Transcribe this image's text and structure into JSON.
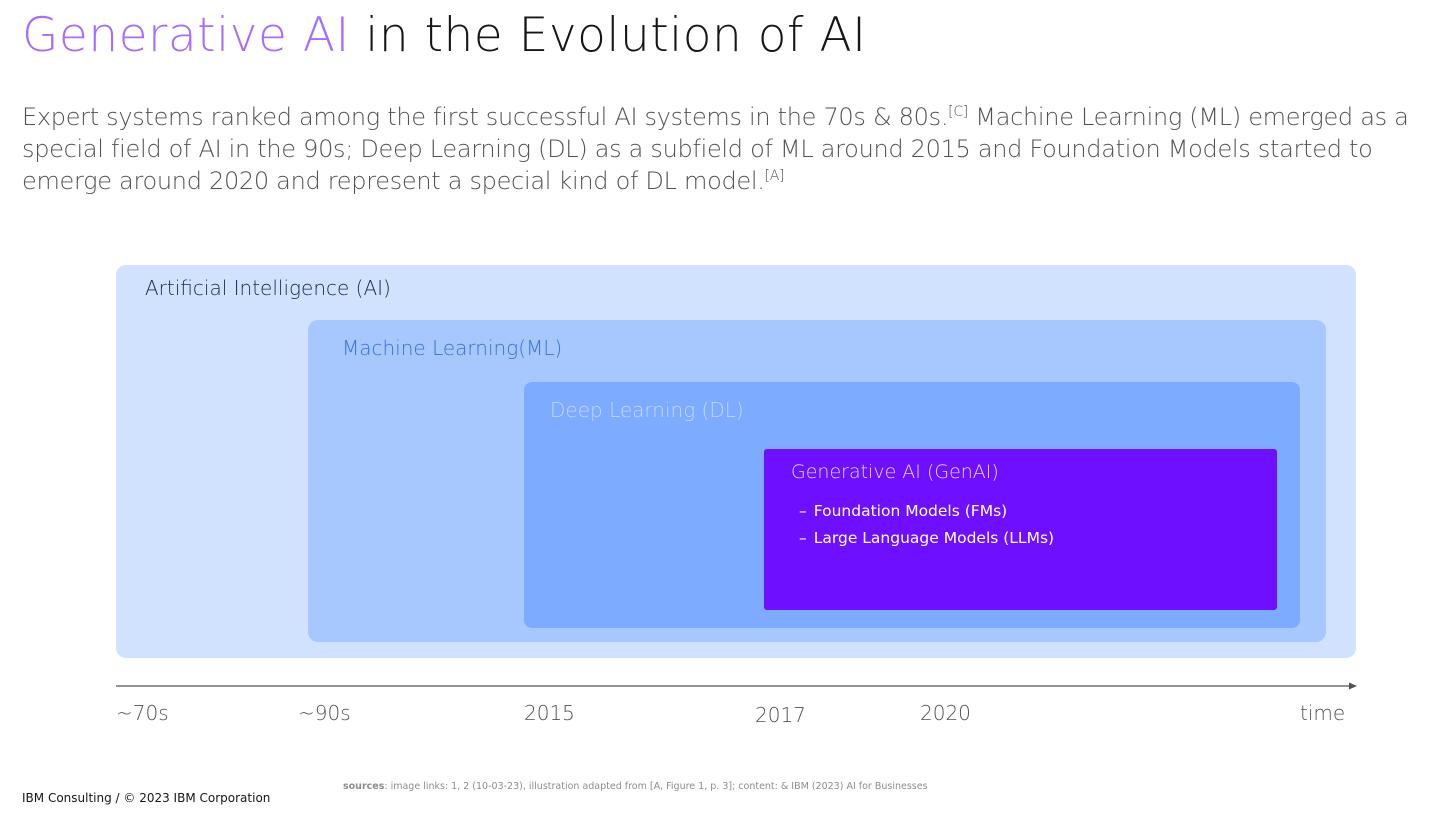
{
  "title": {
    "accent": "Generative AI",
    "rest": " in the Evolution of AI"
  },
  "intro": {
    "part1": "Expert systems ranked among the first successful AI systems in the 70s & 80s.",
    "ref1": "[C]",
    "part2": " Machine Learning (ML) emerged as a special field of AI in the 90s; Deep Learning (DL) as a subfield of ML around 2015 and Foundation Models started to emerge around 2020 and represent a special kind of DL model.",
    "ref2": "[A]"
  },
  "diagram": {
    "ai_label": "Artificial Intelligence (AI)",
    "ml_label": "Machine Learning(ML)",
    "dl_label": "Deep Learning (DL)",
    "genai_label": "Generative AI (GenAI)",
    "genai_items": [
      {
        "dash": "–",
        "text": "Foundation Models (FMs)"
      },
      {
        "dash": "–",
        "text": "Large Language Models (LLMs)"
      }
    ],
    "colors": {
      "ai": "#d0e2ff",
      "ml": "#a6c8ff",
      "dl": "#78a9ff",
      "genai": "#6e0fff",
      "title_accent": "#a56eff"
    }
  },
  "timeline": {
    "ticks": [
      "~70s",
      "~90s",
      "2015",
      "2017",
      "2020",
      "time"
    ]
  },
  "sources": {
    "label": "sources",
    "text": ": image links: 1, 2 (10-03-23), illustration adapted from [A, Figure 1, p. 3]; content: & IBM (2023) AI for Businesses"
  },
  "footer": {
    "text": "IBM Consulting / © 2023 IBM Corporation"
  }
}
